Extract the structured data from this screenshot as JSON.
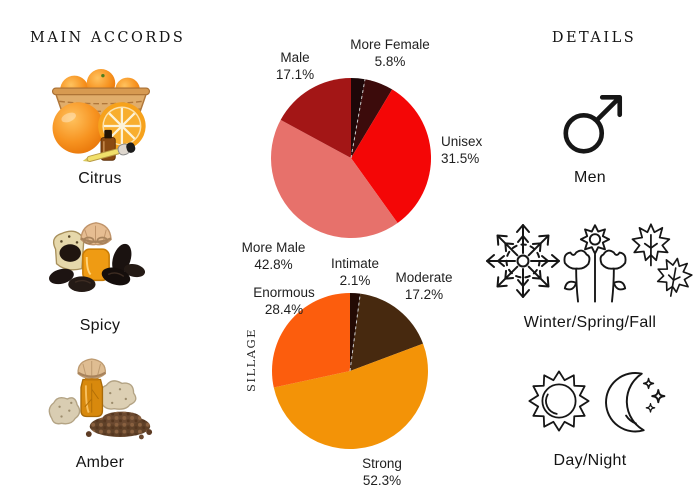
{
  "left_panel": {
    "title": "MAIN ACCORDS",
    "accords": [
      {
        "name": "Citrus",
        "image": "oranges-basket-slice-essential-oil-dropper"
      },
      {
        "name": "Spicy",
        "image": "tonka-beans-amber-bottle-burlap-sack"
      },
      {
        "name": "Amber",
        "image": "amber-resin-rocks-oil-bottle-seeds"
      }
    ]
  },
  "right_panel": {
    "title": "DETAILS",
    "details": [
      {
        "label": "Men",
        "icons": [
          "mars-icon"
        ]
      },
      {
        "label": "Winter/Spring/Fall",
        "icons": [
          "snowflake-icon",
          "spring-flowers-icon",
          "maple-leaves-icon"
        ]
      },
      {
        "label": "Day/Night",
        "icons": [
          "sun-icon",
          "moon-stars-icon"
        ]
      }
    ]
  },
  "chart_data": [
    {
      "type": "pie",
      "name": "gender-votes",
      "start_angle": "12-oclock",
      "direction": "clockwise",
      "dashed_divider_after_first_slice": true,
      "slices": [
        {
          "label": "",
          "pct_label": "",
          "value": 2.8,
          "color": "#1d0708"
        },
        {
          "label": "More Female",
          "pct_label": "5.8%",
          "value": 5.8,
          "color": "#3c0b0b"
        },
        {
          "label": "Unisex",
          "pct_label": "31.5%",
          "value": 31.5,
          "color": "#f40606"
        },
        {
          "label": "More Male",
          "pct_label": "42.8%",
          "value": 42.8,
          "color": "#e7716b"
        },
        {
          "label": "Male",
          "pct_label": "17.1%",
          "value": 17.1,
          "color": "#a31616"
        }
      ]
    },
    {
      "type": "pie",
      "name": "sillage",
      "axis_label": "SILLAGE",
      "start_angle": "12-oclock",
      "direction": "clockwise",
      "dashed_divider_after_first_slice": true,
      "slices": [
        {
          "label": "Intimate",
          "pct_label": "2.1%",
          "value": 2.1,
          "color": "#230a04"
        },
        {
          "label": "Moderate",
          "pct_label": "17.2%",
          "value": 17.2,
          "color": "#47290f"
        },
        {
          "label": "Strong",
          "pct_label": "52.3%",
          "value": 52.3,
          "color": "#f39307"
        },
        {
          "label": "Enormous",
          "pct_label": "28.4%",
          "value": 28.4,
          "color": "#fc5d0d"
        }
      ]
    }
  ]
}
